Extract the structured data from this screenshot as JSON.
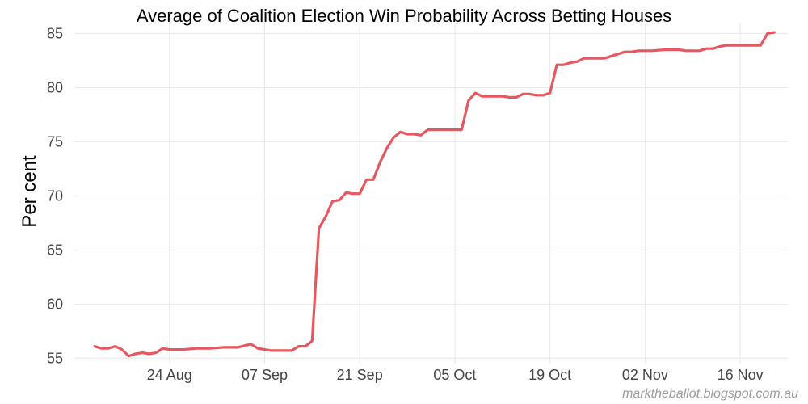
{
  "chart_data": {
    "type": "line",
    "title": "Average of Coalition Election Win Probability Across Betting Houses",
    "ylabel": "Per cent",
    "xlabel": "",
    "ylim": [
      54.5,
      86
    ],
    "yticks": [
      55,
      60,
      65,
      70,
      75,
      80,
      85
    ],
    "x_ticks": [
      "24 Aug",
      "07 Sep",
      "21 Sep",
      "05 Oct",
      "19 Oct",
      "02 Nov",
      "16 Nov"
    ],
    "grid": true,
    "line_color": "#e8575f",
    "series": [
      {
        "x": [
          "2013-08-13",
          "2013-08-14",
          "2013-08-15",
          "2013-08-16",
          "2013-08-17",
          "2013-08-18",
          "2013-08-19",
          "2013-08-20",
          "2013-08-21",
          "2013-08-22",
          "2013-08-23",
          "2013-08-24",
          "2013-08-26",
          "2013-08-28",
          "2013-08-30",
          "2013-09-01",
          "2013-09-03",
          "2013-09-05",
          "2013-09-06",
          "2013-09-07",
          "2013-09-08",
          "2013-09-09",
          "2013-09-10",
          "2013-09-11",
          "2013-09-12",
          "2013-09-13",
          "2013-09-14",
          "2013-09-15",
          "2013-09-16",
          "2013-09-17",
          "2013-09-18",
          "2013-09-19",
          "2013-09-20",
          "2013-09-21",
          "2013-09-22",
          "2013-09-23",
          "2013-09-24",
          "2013-09-25",
          "2013-09-26",
          "2013-09-27",
          "2013-09-28",
          "2013-09-29",
          "2013-09-30",
          "2013-10-01",
          "2013-10-02",
          "2013-10-03",
          "2013-10-04",
          "2013-10-05",
          "2013-10-06",
          "2013-10-07",
          "2013-10-08",
          "2013-10-09",
          "2013-10-10",
          "2013-10-11",
          "2013-10-12",
          "2013-10-13",
          "2013-10-14",
          "2013-10-15",
          "2013-10-16",
          "2013-10-17",
          "2013-10-18",
          "2013-10-19",
          "2013-10-20",
          "2013-10-21",
          "2013-10-22",
          "2013-10-23",
          "2013-10-24",
          "2013-10-25",
          "2013-10-27",
          "2013-10-29",
          "2013-10-30",
          "2013-10-31",
          "2013-11-01",
          "2013-11-03",
          "2013-11-05",
          "2013-11-07",
          "2013-11-08",
          "2013-11-10",
          "2013-11-11",
          "2013-11-12",
          "2013-11-13",
          "2013-11-14",
          "2013-11-15",
          "2013-11-16",
          "2013-11-17",
          "2013-11-19",
          "2013-11-20",
          "2013-11-21"
        ],
        "values": [
          56.1,
          55.9,
          55.9,
          56.1,
          55.8,
          55.2,
          55.4,
          55.5,
          55.4,
          55.5,
          55.9,
          55.8,
          55.8,
          55.9,
          55.9,
          56.0,
          56.0,
          56.3,
          55.9,
          55.8,
          55.7,
          55.7,
          55.7,
          55.7,
          56.1,
          56.1,
          56.6,
          67.0,
          68.1,
          69.5,
          69.6,
          70.3,
          70.2,
          70.2,
          71.5,
          71.5,
          73.1,
          74.4,
          75.4,
          75.9,
          75.7,
          75.7,
          75.6,
          76.1,
          76.1,
          76.1,
          76.1,
          76.1,
          76.1,
          78.8,
          79.5,
          79.2,
          79.2,
          79.2,
          79.2,
          79.1,
          79.1,
          79.4,
          79.4,
          79.3,
          79.3,
          79.5,
          82.1,
          82.1,
          82.3,
          82.4,
          82.7,
          82.7,
          82.7,
          83.1,
          83.3,
          83.3,
          83.4,
          83.4,
          83.5,
          83.5,
          83.4,
          83.4,
          83.6,
          83.6,
          83.8,
          83.9,
          83.9,
          83.9,
          83.9,
          83.9,
          85.0,
          85.1
        ]
      }
    ]
  },
  "credit": "marktheballot.blogspot.com.au"
}
